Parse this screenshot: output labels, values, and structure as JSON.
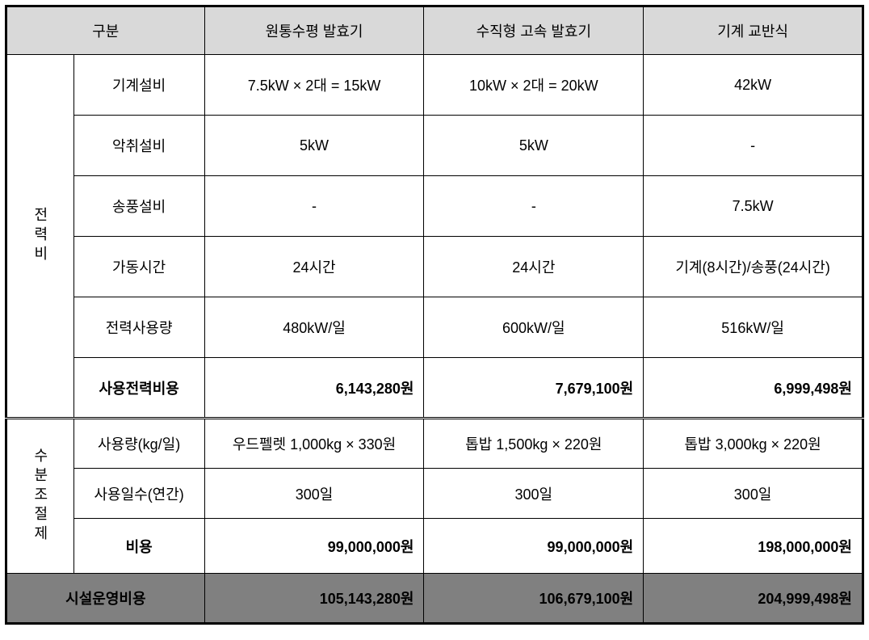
{
  "headers": {
    "category": "구분",
    "col1": "원통수평 발효기",
    "col2": "수직형 고속 발효기",
    "col3": "기계 교반식"
  },
  "power": {
    "label": "전력비",
    "rows": {
      "machinery": {
        "label": "기계설비",
        "c1": "7.5kW × 2대 = 15kW",
        "c2": "10kW × 2대 = 20kW",
        "c3": "42kW"
      },
      "odor": {
        "label": "악취설비",
        "c1": "5kW",
        "c2": "5kW",
        "c3": "-"
      },
      "blower": {
        "label": "송풍설비",
        "c1": "-",
        "c2": "-",
        "c3": "7.5kW"
      },
      "hours": {
        "label": "가동시간",
        "c1": "24시간",
        "c2": "24시간",
        "c3": "기계(8시간)/송풍(24시간)"
      },
      "usage": {
        "label": "전력사용량",
        "c1": "480kW/일",
        "c2": "600kW/일",
        "c3": "516kW/일"
      },
      "cost": {
        "label": "사용전력비용",
        "c1": "6,143,280원",
        "c2": "7,679,100원",
        "c3": "6,999,498원"
      }
    }
  },
  "moisture": {
    "label": "수분조절제",
    "rows": {
      "amount": {
        "label": "사용량(kg/일)",
        "c1": "우드펠렛 1,000kg × 330원",
        "c2": "톱밥 1,500kg × 220원",
        "c3": "톱밥 3,000kg × 220원"
      },
      "days": {
        "label": "사용일수(연간)",
        "c1": "300일",
        "c2": "300일",
        "c3": "300일"
      },
      "cost": {
        "label": "비용",
        "c1": "99,000,000원",
        "c2": "99,000,000원",
        "c3": "198,000,000원"
      }
    }
  },
  "total": {
    "label": "시설운영비용",
    "c1": "105,143,280원",
    "c2": "106,679,100원",
    "c3": "204,999,498원"
  }
}
